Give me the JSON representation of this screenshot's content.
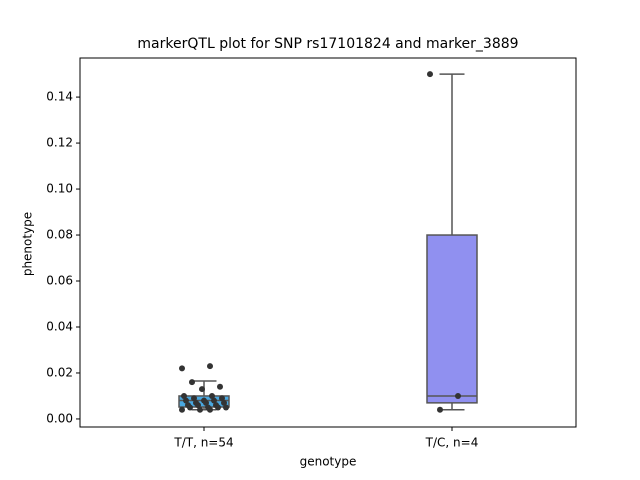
{
  "chart_data": {
    "type": "box",
    "title": "markerQTL plot for SNP rs17101824 and marker_3889",
    "xlabel": "genotype",
    "ylabel": "phenotype",
    "categories": [
      "T/T, n=54",
      "T/C, n=4"
    ],
    "colors": [
      "#4aa8e0",
      "#9090f0"
    ],
    "boxes": [
      {
        "whislo": 0.004,
        "q1": 0.0052,
        "med": 0.008,
        "q3": 0.01,
        "whishi": 0.0165
      },
      {
        "whislo": 0.004,
        "q1": 0.007,
        "med": 0.01,
        "q3": 0.08,
        "whishi": 0.15
      }
    ],
    "points": [
      [
        0.022,
        0.023,
        0.016,
        0.014,
        0.013,
        0.01,
        0.01,
        0.009,
        0.009,
        0.008,
        0.008,
        0.008,
        0.007,
        0.007,
        0.007,
        0.006,
        0.006,
        0.006,
        0.005,
        0.005,
        0.005,
        0.005,
        0.004,
        0.004,
        0.004
      ],
      [
        0.15,
        0.01,
        0.004
      ]
    ],
    "ylim": [
      -0.0035,
      0.157
    ],
    "yticks": [
      {
        "value": 0,
        "label": "0.00"
      },
      {
        "value": 0.02,
        "label": "0.02"
      },
      {
        "value": 0.04,
        "label": "0.04"
      },
      {
        "value": 0.06,
        "label": "0.06"
      },
      {
        "value": 0.08,
        "label": "0.08"
      },
      {
        "value": 0.1,
        "label": "0.10"
      },
      {
        "value": 0.12,
        "label": "0.12"
      },
      {
        "value": 0.14,
        "label": "0.14"
      }
    ]
  }
}
